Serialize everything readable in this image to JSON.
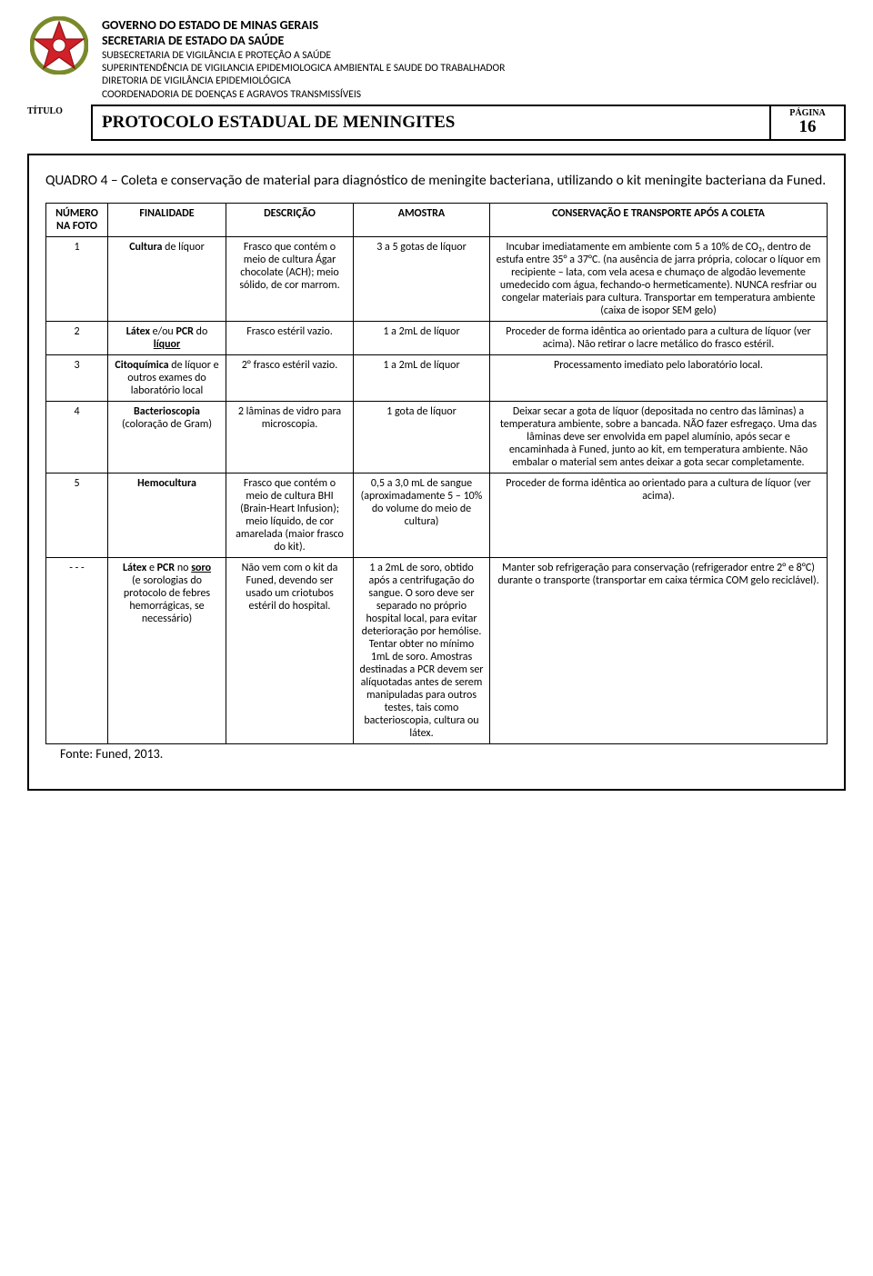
{
  "header": {
    "line1": "GOVERNO DO ESTADO DE MINAS GERAIS",
    "line2": "SECRETARIA DE ESTADO DA SAÚDE",
    "line3": "SUBSECRETARIA DE VIGILÂNCIA E PROTEÇÂO A SAÚDE",
    "line4": "SUPERINTENDÊNCIA DE VIGILANCIA EPIDEMIOLOGICA AMBIENTAL E SAUDE DO TRABALHADOR",
    "line5": "DIRETORIA DE VIGILÂNCIA EPIDEMIOLÓGICA",
    "line6": "COORDENADORIA DE DOENÇAS E AGRAVOS TRANSMISSÍVEIS"
  },
  "titleRow": {
    "label": "TÍTULO",
    "title": "PROTOCOLO ESTADUAL DE MENINGITES",
    "pageLabel": "PÁGINA",
    "pageNumber": "16"
  },
  "quadro": {
    "caption": "QUADRO 4 – Coleta e conservação de material para diagnóstico de meningite bacteriana, utilizando o kit meningite bacteriana da Funed.",
    "headers": {
      "numero": "NÚMERO NA FOTO",
      "finalidade": "FINALIDADE",
      "descricao": "DESCRIÇÃO",
      "amostra": "AMOSTRA",
      "conservacao": "CONSERVAÇÃO E TRANSPORTE APÓS A COLETA"
    },
    "rows": [
      {
        "numero": "1",
        "finalidade_html": "<b>Cultura</b> de líquor",
        "descricao": "Frasco que contém o meio de cultura Ágar chocolate (ACH); meio sólido, de cor marrom.",
        "amostra": "3 a 5 gotas de líquor",
        "conservacao": "Incubar imediatamente em ambiente com 5 a 10% de CO₂, dentro de estufa entre 35° a 37°C. (na ausência de jarra própria, colocar o líquor em recipiente – lata, com vela acesa e chumaço de algodão levemente umedecido com água, fechando-o hermeticamente). NUNCA resfriar ou congelar materiais para cultura. Transportar em temperatura ambiente (caixa de isopor SEM gelo)"
      },
      {
        "numero": "2",
        "finalidade_html": "<b>Látex</b> e/ou <b>PCR</b> do <span class=\"u\"><b>líquor</b></span>",
        "descricao": "Frasco estéril vazio.",
        "amostra": "1 a 2mL de líquor",
        "conservacao": "Proceder de forma idêntica ao orientado para a cultura de líquor (ver acima). Não retirar o lacre metálico do frasco estéril."
      },
      {
        "numero": "3",
        "finalidade_html": "<b>Citoquímica</b> de líquor e outros exames do laboratório local",
        "descricao": "2° frasco estéril vazio.",
        "amostra": "1 a 2mL de líquor",
        "conservacao": "Processamento imediato pelo laboratório local."
      },
      {
        "numero": "4",
        "finalidade_html": "<b>Bacterioscopia</b> (coloração de Gram)",
        "descricao": "2 lâminas de vidro para microscopia.",
        "amostra": "1 gota de líquor",
        "conservacao": "Deixar secar a gota de líquor (depositada no centro das lâminas) a temperatura ambiente, sobre a bancada. NÃO fazer esfregaço. Uma das lâminas deve ser envolvida em papel alumínio, após secar e encaminhada à Funed, junto ao kit, em temperatura ambiente. Não embalar o material sem antes deixar a gota secar completamente."
      },
      {
        "numero": "5",
        "finalidade_html": "<b>Hemocultura</b>",
        "descricao": "Frasco que contém o meio de cultura BHI (Brain-Heart Infusion); meio líquido, de cor amarelada (maior frasco do kit).",
        "amostra": "0,5 a 3,0 mL de sangue (aproximadamente 5 – 10% do volume do meio de cultura)",
        "conservacao": "Proceder de forma idêntica ao orientado para a cultura de líquor (ver acima)."
      },
      {
        "numero": "- - -",
        "finalidade_html": "<b>Látex</b> e <b>PCR</b> no <span class=\"u\"><b>soro</b></span><br>(e sorologias do protocolo de febres hemorrágicas, se necessário)",
        "descricao": "Não vem com o kit da Funed, devendo ser usado um criotubos estéril do hospital.",
        "amostra": "1 a 2mL de soro, obtido após a centrifugação do sangue. O soro deve ser separado no próprio hospital local, para evitar deterioração por hemólise. Tentar obter no mínimo 1mL de soro. Amostras destinadas a PCR devem ser alíquotadas antes de serem manipuladas para outros testes, tais como bacterioscopia, cultura ou látex.",
        "conservacao": "Manter sob refrigeração para conservação (refrigerador entre 2° e 8°C) durante o transporte (transportar em caixa térmica COM gelo reciclável)."
      }
    ],
    "fonte": "Fonte: Funed, 2013."
  },
  "logo_colors": {
    "wreath": "#7a8a2b",
    "star_fill": "#d02028",
    "star_stroke": "#8f1217",
    "center": "#ffffff"
  }
}
